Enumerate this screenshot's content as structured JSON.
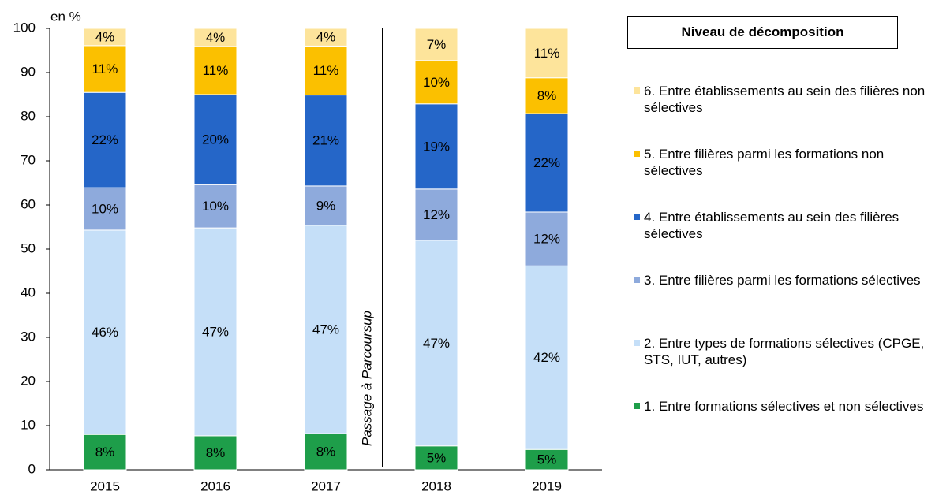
{
  "chart_data": {
    "type": "stacked-bar",
    "y_label": "en %",
    "annotation": "Passage à Parcoursup",
    "legend_title": "Niveau de décomposition",
    "categories": [
      "2015",
      "2016",
      "2017",
      "2018",
      "2019"
    ],
    "ylim": [
      0,
      100
    ],
    "yticks": [
      0,
      10,
      20,
      30,
      40,
      50,
      60,
      70,
      80,
      90,
      100
    ],
    "series": [
      {
        "name": "1. Entre formations sélectives et non sélectives",
        "color": "#1e9e4a",
        "values": [
          8.0,
          7.7,
          8.2,
          5.4,
          4.6
        ],
        "value_labels": [
          "8%",
          "8%",
          "8%",
          "5%",
          "5%"
        ]
      },
      {
        "name": "2. Entre types de formations sélectives (CPGE, STS, IUT, autres)",
        "color": "#c5dff8",
        "values": [
          46.3,
          47.1,
          47.2,
          46.6,
          41.6
        ],
        "value_labels": [
          "46%",
          "47%",
          "47%",
          "47%",
          "42%"
        ]
      },
      {
        "name": "3. Entre filières parmi les formations sélectives",
        "color": "#8eaadc",
        "values": [
          9.6,
          9.8,
          8.9,
          11.6,
          12.2
        ],
        "value_labels": [
          "10%",
          "10%",
          "9%",
          "12%",
          "12%"
        ]
      },
      {
        "name": "4. Entre établissements au sein des filières sélectives",
        "color": "#2566c8",
        "values": [
          21.6,
          20.4,
          20.6,
          19.3,
          22.3
        ],
        "value_labels": [
          "22%",
          "20%",
          "21%",
          "19%",
          "22%"
        ]
      },
      {
        "name": "5. Entre filières parmi les formations non sélectives",
        "color": "#fbc000",
        "values": [
          10.6,
          10.9,
          11.1,
          9.8,
          8.1
        ],
        "value_labels": [
          "11%",
          "11%",
          "11%",
          "10%",
          "8%"
        ]
      },
      {
        "name": "6. Entre établissements au sein des filières non sélectives",
        "color": "#fde49b",
        "values": [
          3.9,
          4.1,
          4.0,
          7.3,
          11.2
        ],
        "value_labels": [
          "4%",
          "4%",
          "4%",
          "7%",
          "11%"
        ]
      }
    ]
  }
}
